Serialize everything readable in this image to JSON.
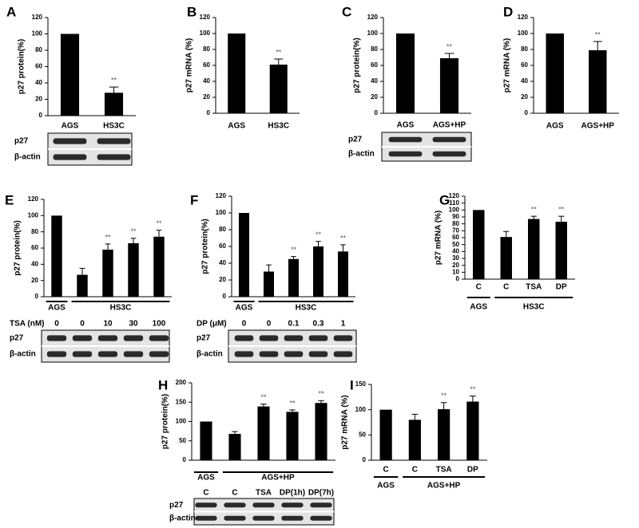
{
  "chart_data": [
    {
      "type": "bar",
      "panel": "A",
      "ylabel": "p27 protein(%)",
      "categories": [
        "AGS",
        "HS3C"
      ],
      "values": [
        100,
        28
      ],
      "errors": [
        null,
        7
      ],
      "annotations": [
        null,
        "**"
      ],
      "color": "#000000",
      "ylim": [
        0,
        120
      ],
      "yticks": [
        0,
        20,
        40,
        60,
        80,
        100,
        120
      ],
      "blot_rows": [
        "p27",
        "β-actin"
      ]
    },
    {
      "type": "bar",
      "panel": "B",
      "ylabel": "p27 mRNA (%)",
      "categories": [
        "AGS",
        "HS3C"
      ],
      "values": [
        100,
        61
      ],
      "errors": [
        null,
        7
      ],
      "annotations": [
        null,
        "**"
      ],
      "color": "#000000",
      "ylim": [
        0,
        120
      ],
      "yticks": [
        0,
        20,
        40,
        60,
        80,
        100,
        120
      ]
    },
    {
      "type": "bar",
      "panel": "C",
      "ylabel": "p27 protein(%)",
      "categories": [
        "AGS",
        "AGS+HP"
      ],
      "values": [
        100,
        69
      ],
      "errors": [
        null,
        6
      ],
      "annotations": [
        null,
        "**"
      ],
      "color": "#000000",
      "ylim": [
        0,
        120
      ],
      "yticks": [
        0,
        20,
        40,
        60,
        80,
        100,
        120
      ],
      "blot_rows": [
        "p27",
        "β-actin"
      ]
    },
    {
      "type": "bar",
      "panel": "D",
      "ylabel": "p27 mRNA (%)",
      "categories": [
        "AGS",
        "AGS+HP"
      ],
      "values": [
        100,
        79
      ],
      "errors": [
        null,
        11
      ],
      "annotations": [
        null,
        "**"
      ],
      "color": "#000000",
      "ylim": [
        0,
        120
      ],
      "yticks": [
        0,
        20,
        40,
        60,
        80,
        100,
        120
      ]
    },
    {
      "type": "bar",
      "panel": "E",
      "ylabel": "p27 protein(%)",
      "treatment": "TSA (nM)",
      "categories": [
        "0",
        "0",
        "10",
        "30",
        "100"
      ],
      "values": [
        100,
        27,
        58,
        66,
        74
      ],
      "errors": [
        null,
        8,
        7,
        6,
        8
      ],
      "annotations": [
        null,
        null,
        "**",
        "**",
        "**"
      ],
      "groups": [
        {
          "label": "AGS",
          "start": 0,
          "end": 0
        },
        {
          "label": "HS3C",
          "start": 1,
          "end": 4
        }
      ],
      "color": "#000000",
      "ylim": [
        0,
        120
      ],
      "yticks": [
        0,
        20,
        40,
        60,
        80,
        100,
        120
      ],
      "blot_rows": [
        "p27",
        "β-actin"
      ]
    },
    {
      "type": "bar",
      "panel": "F",
      "ylabel": "p27 protein(%)",
      "treatment": "DP (μM)",
      "categories": [
        "0",
        "0",
        "0.1",
        "0.3",
        "1"
      ],
      "values": [
        100,
        30,
        45,
        60,
        54
      ],
      "errors": [
        null,
        8,
        3,
        6,
        8
      ],
      "annotations": [
        null,
        null,
        "**",
        "**",
        "**"
      ],
      "groups": [
        {
          "label": "AGS",
          "start": 0,
          "end": 0
        },
        {
          "label": "HS3C",
          "start": 1,
          "end": 4
        }
      ],
      "color": "#000000",
      "ylim": [
        0,
        120
      ],
      "yticks": [
        0,
        20,
        40,
        60,
        80,
        100,
        120
      ],
      "blot_rows": [
        "p27",
        "β-actin"
      ]
    },
    {
      "type": "bar",
      "panel": "G",
      "ylabel": "p27 mRNA (%)",
      "categories": [
        "C",
        "C",
        "TSA",
        "DP"
      ],
      "values": [
        100,
        61,
        87,
        83
      ],
      "errors": [
        null,
        8,
        4,
        8
      ],
      "annotations": [
        null,
        null,
        "**",
        "**"
      ],
      "groups": [
        {
          "label": "AGS",
          "start": 0,
          "end": 0
        },
        {
          "label": "HS3C",
          "start": 1,
          "end": 3
        }
      ],
      "color": "#000000",
      "ylim": [
        0,
        120
      ],
      "yticks": [
        0,
        10,
        20,
        30,
        40,
        50,
        60,
        70,
        80,
        90,
        100,
        110,
        120
      ]
    },
    {
      "type": "bar",
      "panel": "H",
      "ylabel": "p27 protein(%)",
      "categories": [
        "C",
        "C",
        "TSA",
        "DP(1h)",
        "DP(7h)"
      ],
      "values": [
        100,
        68,
        139,
        125,
        148
      ],
      "errors": [
        null,
        6,
        6,
        5,
        6
      ],
      "annotations": [
        null,
        null,
        "**",
        "**",
        "**"
      ],
      "groups": [
        {
          "label": "AGS",
          "start": 0,
          "end": 0
        },
        {
          "label": "AGS+HP",
          "start": 1,
          "end": 4
        }
      ],
      "color": "#000000",
      "ylim": [
        0,
        200
      ],
      "yticks": [
        0,
        50,
        100,
        150,
        200
      ],
      "blot_rows": [
        "p27",
        "β-actin"
      ]
    },
    {
      "type": "bar",
      "panel": "I",
      "ylabel": "p27 mRNA (%)",
      "categories": [
        "C",
        "C",
        "TSA",
        "DP"
      ],
      "values": [
        100,
        80,
        101,
        116
      ],
      "errors": [
        null,
        11,
        13,
        11
      ],
      "annotations": [
        null,
        null,
        "**",
        "**"
      ],
      "groups": [
        {
          "label": "AGS",
          "start": 0,
          "end": 0
        },
        {
          "label": "AGS+HP",
          "start": 1,
          "end": 3
        }
      ],
      "color": "#000000",
      "ylim": [
        0,
        150
      ],
      "yticks": [
        0,
        50,
        100,
        150
      ]
    }
  ]
}
